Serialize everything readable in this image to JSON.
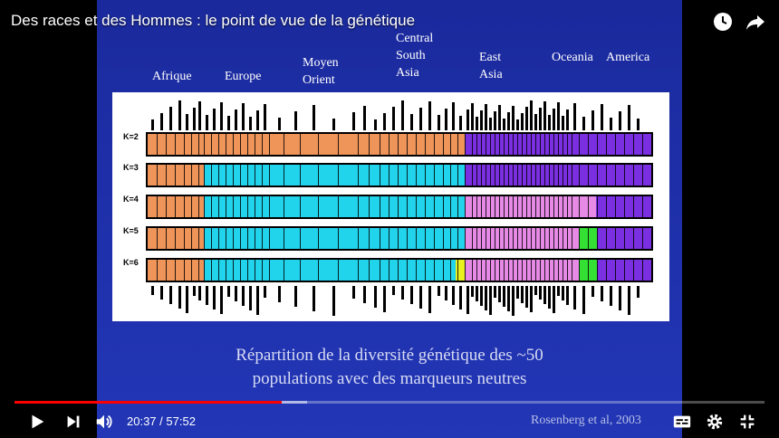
{
  "video": {
    "title": "Des races et des Hommes : le point de vue de la génétique",
    "current_time": "20:37",
    "duration": "57:52",
    "time_separator": " / ",
    "progress_fraction": 0.356,
    "buffered_fraction": 0.39
  },
  "slide": {
    "regions": [
      {
        "label": "Afrique"
      },
      {
        "label": "Europe"
      },
      {
        "label": "Moyen\nOrient"
      },
      {
        "label": "Central\nSouth\nAsia"
      },
      {
        "label": "East\nAsia"
      },
      {
        "label": "Oceania"
      },
      {
        "label": "America"
      }
    ],
    "k_labels": [
      "K=2",
      "K=3",
      "K=4",
      "K=5",
      "K=6"
    ],
    "caption_line1": "Répartition de la diversité génétique des ~50",
    "caption_line2": "populations avec des marqueurs neutres",
    "citation": "Rosenberg et al, 2003"
  },
  "colors": {
    "orange": "#f0955a",
    "purple": "#7a2fe0",
    "cyan": "#22d3ec",
    "pink": "#e68ae6",
    "green": "#33e033",
    "yellow": "#e8f020",
    "progress": "#ff0000"
  },
  "icons": [
    "clock-icon",
    "share-icon",
    "play-icon",
    "next-icon",
    "volume-icon",
    "subtitles-icon",
    "settings-icon",
    "exit-fullscreen-icon"
  ]
}
